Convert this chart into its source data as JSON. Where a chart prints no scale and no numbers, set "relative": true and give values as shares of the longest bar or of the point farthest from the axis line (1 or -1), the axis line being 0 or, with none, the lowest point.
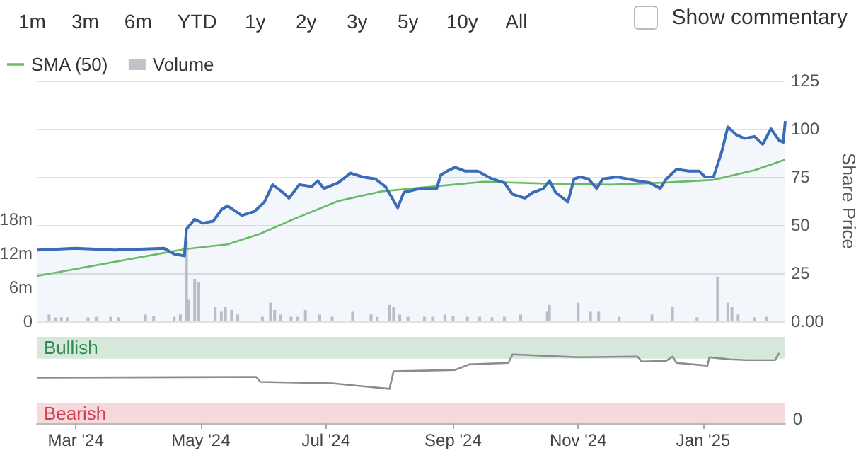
{
  "chart_data": [
    {
      "type": "line",
      "xlim": [
        "2024-02-11",
        "2025-02-10"
      ],
      "ylim": [
        0,
        125
      ],
      "yticks": [
        {
          "value": 0,
          "label": "0.00"
        },
        25,
        50,
        75,
        100,
        125
      ],
      "ylabel": "Share Price",
      "y2lim": [
        0,
        42.5
      ],
      "y2ticks": [
        {
          "value": 0,
          "label": "0"
        },
        {
          "value": 6,
          "label": "6m"
        },
        {
          "value": 12,
          "label": "12m"
        },
        {
          "value": 18,
          "label": "18m"
        }
      ],
      "grid": "y",
      "legend": "top left",
      "tick_labels": "y",
      "marker": "none",
      "annotations": [
        "1m",
        "3m",
        "6m",
        "YTD",
        "1y",
        "2y",
        "3y",
        "5y",
        "10y",
        "All",
        "Show commentary"
      ],
      "series": [
        {
          "type": "area",
          "color": "#3b6cb7",
          "x": [
            "2024-02-11",
            "2024-03-01",
            "2024-03-20",
            "2024-04-13",
            "2024-04-18",
            "2024-04-23",
            "2024-04-24",
            "2024-04-28",
            "2024-05-02",
            "2024-05-07",
            "2024-05-11",
            "2024-05-14",
            "2024-05-21",
            "2024-05-27",
            "2024-06-01",
            "2024-06-05",
            "2024-06-10",
            "2024-06-13",
            "2024-06-18",
            "2024-06-24",
            "2024-06-27",
            "2024-06-30",
            "2024-07-07",
            "2024-07-13",
            "2024-07-19",
            "2024-07-25",
            "2024-07-30",
            "2024-08-05",
            "2024-08-08",
            "2024-08-16",
            "2024-08-24",
            "2024-08-26",
            "2024-08-29",
            "2024-09-02",
            "2024-09-07",
            "2024-09-13",
            "2024-09-20",
            "2024-09-26",
            "2024-09-30",
            "2024-10-06",
            "2024-10-10",
            "2024-10-15",
            "2024-10-18",
            "2024-10-21",
            "2024-10-27",
            "2024-10-30",
            "2024-11-02",
            "2024-11-06",
            "2024-11-10",
            "2024-11-13",
            "2024-11-20",
            "2024-11-30",
            "2024-12-06",
            "2024-12-11",
            "2024-12-14",
            "2024-12-19",
            "2024-12-25",
            "2024-12-30",
            "2025-01-02",
            "2025-01-06",
            "2025-01-10",
            "2025-01-13",
            "2025-01-17",
            "2025-01-21",
            "2025-01-26",
            "2025-01-30",
            "2025-02-03",
            "2025-02-07",
            "2025-02-09",
            "2025-02-10"
          ],
          "values": [
            37,
            38,
            37,
            38,
            35,
            34,
            48,
            53,
            51,
            52,
            58,
            60,
            55,
            57,
            62,
            71,
            67,
            64,
            71,
            70,
            73,
            69,
            72,
            77,
            75,
            74,
            70,
            59,
            67,
            69,
            69,
            76,
            78,
            80,
            78,
            78,
            74,
            72,
            66,
            64,
            67,
            69,
            73,
            67,
            62,
            74,
            75,
            74,
            69,
            74,
            75,
            73,
            72,
            69,
            74,
            79,
            78,
            78,
            75,
            75,
            88,
            101,
            97,
            95,
            96,
            92,
            100,
            94,
            93,
            104
          ]
        },
        {
          "type": "line",
          "name": "SMA (50)",
          "color": "#6cbf5f",
          "x": [
            "2024-02-11",
            "2024-04-23",
            "2024-05-14",
            "2024-05-30",
            "2024-06-15",
            "2024-07-07",
            "2024-07-28",
            "2024-08-22",
            "2024-09-16",
            "2024-10-18",
            "2024-11-17",
            "2024-12-12",
            "2025-01-06",
            "2025-01-26",
            "2025-02-10"
          ],
          "values": [
            23.5,
            37.5,
            40,
            45.5,
            53,
            62.5,
            67.5,
            70,
            72.5,
            71.5,
            71,
            72,
            73.5,
            78.5,
            84
          ]
        },
        {
          "type": "bar",
          "name": "Volume",
          "color": "#c2c3c9",
          "axis": "y2",
          "x": [
            "2024-02-17",
            "2024-02-20",
            "2024-02-23",
            "2024-02-26",
            "2024-03-07",
            "2024-03-11",
            "2024-03-18",
            "2024-03-22",
            "2024-04-04",
            "2024-04-08",
            "2024-04-18",
            "2024-04-21",
            "2024-04-24",
            "2024-04-25",
            "2024-04-28",
            "2024-04-30",
            "2024-05-08",
            "2024-05-11",
            "2024-05-13",
            "2024-05-16",
            "2024-05-19",
            "2024-05-31",
            "2024-06-04",
            "2024-06-06",
            "2024-06-09",
            "2024-06-14",
            "2024-06-17",
            "2024-06-21",
            "2024-06-28",
            "2024-07-04",
            "2024-07-14",
            "2024-07-23",
            "2024-07-26",
            "2024-08-01",
            "2024-08-03",
            "2024-08-06",
            "2024-08-10",
            "2024-08-18",
            "2024-08-22",
            "2024-08-28",
            "2024-09-01",
            "2024-09-08",
            "2024-09-14",
            "2024-09-20",
            "2024-09-26",
            "2024-10-04",
            "2024-10-17",
            "2024-10-18",
            "2024-11-01",
            "2024-11-07",
            "2024-11-11",
            "2024-11-21",
            "2024-12-07",
            "2024-12-17",
            "2024-12-29",
            "2025-01-08",
            "2025-01-13",
            "2025-01-15",
            "2025-01-18",
            "2025-01-26",
            "2025-02-01"
          ],
          "values": [
            1.2,
            0.7,
            0.7,
            0.7,
            0.7,
            0.8,
            0.8,
            0.7,
            1.2,
            1,
            0.8,
            1.2,
            14.2,
            3.8,
            7.5,
            7,
            2.5,
            1.7,
            2.5,
            2,
            1.2,
            0.8,
            3.3,
            2,
            1.2,
            0.8,
            0.8,
            2,
            1.2,
            0.8,
            1.7,
            1.2,
            0.8,
            2.9,
            2.5,
            1.2,
            0.8,
            0.8,
            0.8,
            1.2,
            1,
            0.8,
            0.8,
            0.7,
            0.8,
            1.2,
            1.7,
            2.9,
            3.3,
            1.7,
            1.7,
            0.8,
            1.2,
            2.5,
            0.7,
            7.9,
            3.3,
            2.5,
            1.2,
            0.7,
            0.8
          ]
        }
      ]
    },
    {
      "type": "line",
      "relative": true,
      "xlim": [
        "2024-02-11",
        "2025-02-10"
      ],
      "xticks": [
        {
          "value": "2024-03-01",
          "label": "Mar '24"
        },
        {
          "value": "2024-05-01",
          "label": "May '24"
        },
        {
          "value": "2024-07-01",
          "label": "Jul '24"
        },
        {
          "value": "2024-09-01",
          "label": "Sep '24"
        },
        {
          "value": "2024-11-01",
          "label": "Nov '24"
        },
        {
          "value": "2025-01-01",
          "label": "Jan '25"
        }
      ],
      "marker": "none",
      "annotations": [
        "0"
      ],
      "bands": [
        {
          "axis": "y",
          "from": 0.92,
          "to": 1.23,
          "label": "Bullish",
          "color": "#2e8b4a"
        },
        {
          "axis": "y",
          "from": 0,
          "to": 0.29,
          "label": "Bearish",
          "color": "#d0404f"
        }
      ],
      "series": [
        {
          "color": "#8c8c8c",
          "x": [
            "2024-02-11",
            "2024-05-28",
            "2024-05-30",
            "2024-07-04",
            "2024-08-01",
            "2024-08-03",
            "2024-09-02",
            "2024-09-09",
            "2024-09-28",
            "2024-09-30",
            "2024-11-01",
            "2024-11-30",
            "2024-12-02",
            "2024-12-14",
            "2024-12-17",
            "2024-12-19",
            "2025-01-03",
            "2025-01-04",
            "2025-01-14",
            "2025-01-22",
            "2025-02-05",
            "2025-02-07"
          ],
          "values": [
            0.65,
            0.66,
            0.59,
            0.57,
            0.49,
            0.74,
            0.76,
            0.84,
            0.86,
            0.98,
            0.94,
            0.95,
            0.88,
            0.89,
            0.95,
            0.86,
            0.82,
            0.94,
            0.91,
            0.9,
            0.9,
            1
          ]
        }
      ]
    }
  ]
}
